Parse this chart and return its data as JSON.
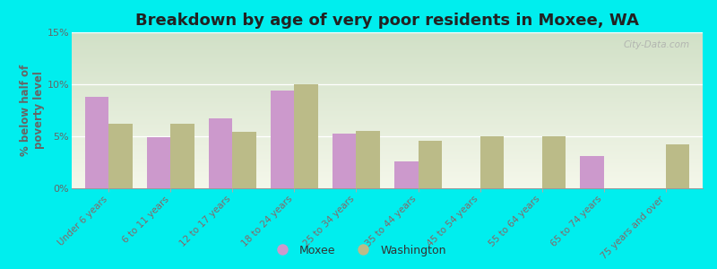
{
  "title": "Breakdown by age of very poor residents in Moxee, WA",
  "ylabel": "% below half of\npoverty level",
  "categories": [
    "Under 6 years",
    "6 to 11 years",
    "12 to 17 years",
    "18 to 24 years",
    "25 to 34 years",
    "35 to 44 years",
    "45 to 54 years",
    "55 to 64 years",
    "65 to 74 years",
    "75 years and over"
  ],
  "moxee_values": [
    8.8,
    4.9,
    6.7,
    9.4,
    5.3,
    2.6,
    0.0,
    0.0,
    3.1,
    0.0
  ],
  "washington_values": [
    6.2,
    6.2,
    5.4,
    10.0,
    5.5,
    4.6,
    5.0,
    5.0,
    0.0,
    4.2
  ],
  "moxee_color": "#cc99cc",
  "washington_color": "#bbbb88",
  "background_color": "#00eeee",
  "ylim": [
    0,
    15
  ],
  "yticks": [
    0,
    5,
    10,
    15
  ],
  "ytick_labels": [
    "0%",
    "5%",
    "10%",
    "15%"
  ],
  "title_fontsize": 13,
  "axis_label_color": "#666666",
  "tick_label_color": "#886666",
  "legend_labels": [
    "Moxee",
    "Washington"
  ],
  "watermark": "City-Data.com",
  "bar_width": 0.38
}
